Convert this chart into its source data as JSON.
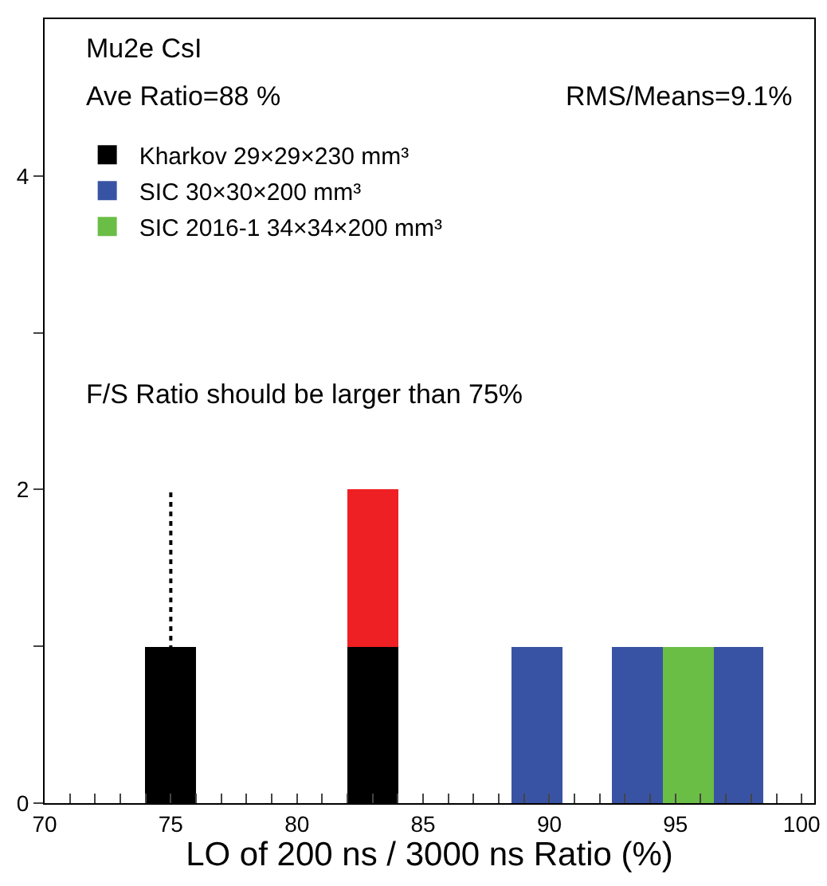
{
  "chart_data": {
    "type": "bar",
    "xlabel": "LO of 200 ns / 3000 ns Ratio (%)",
    "x": [
      75,
      83,
      89.5,
      93.5,
      95.5,
      97.5
    ],
    "stacked": true,
    "series": [
      {
        "name": "Kharkov 29×29×230 mm³",
        "color": "#000000",
        "values": [
          1,
          1,
          null,
          null,
          null,
          null
        ]
      },
      {
        "color": "#ee2024",
        "values": [
          null,
          1,
          null,
          null,
          null,
          null
        ]
      },
      {
        "name": "SIC 30×30×200 mm³",
        "color": "#3953a4",
        "values": [
          null,
          null,
          1,
          1,
          null,
          1
        ]
      },
      {
        "name": "SIC 2016-1 34×34×200 mm³",
        "color": "#6abd45",
        "values": [
          null,
          null,
          null,
          null,
          1,
          null
        ]
      }
    ],
    "xlim": [
      70,
      100.5
    ],
    "ylim": [
      0,
      5
    ],
    "xticks": [
      70,
      {
        "value": 71,
        "label": null
      },
      {
        "value": 72,
        "label": null
      },
      {
        "value": 73,
        "label": null
      },
      {
        "value": 74,
        "label": null
      },
      75,
      {
        "value": 76,
        "label": null
      },
      {
        "value": 77,
        "label": null
      },
      {
        "value": 78,
        "label": null
      },
      {
        "value": 79,
        "label": null
      },
      80,
      {
        "value": 81,
        "label": null
      },
      {
        "value": 82,
        "label": null
      },
      {
        "value": 83,
        "label": null
      },
      {
        "value": 84,
        "label": null
      },
      85,
      {
        "value": 86,
        "label": null
      },
      {
        "value": 87,
        "label": null
      },
      {
        "value": 88,
        "label": null
      },
      {
        "value": 89,
        "label": null
      },
      90,
      {
        "value": 91,
        "label": null
      },
      {
        "value": 92,
        "label": null
      },
      {
        "value": 93,
        "label": null
      },
      {
        "value": 94,
        "label": null
      },
      95,
      {
        "value": 96,
        "label": null
      },
      {
        "value": 97,
        "label": null
      },
      {
        "value": 98,
        "label": null
      },
      {
        "value": 99,
        "label": null
      },
      100
    ],
    "yticks": [
      0,
      {
        "value": 1,
        "label": null
      },
      2,
      {
        "value": 3,
        "label": null
      },
      4
    ],
    "ref_lines": [
      {
        "axis": "x",
        "value": 75,
        "color": "#000000",
        "line_style": "dotted"
      }
    ],
    "annotations": [
      "Mu2e CsI",
      "Ave Ratio=88 %",
      "RMS/Means=9.1%",
      "F/S Ratio should be larger than 75%"
    ],
    "legend": "top left",
    "grid": false
  }
}
